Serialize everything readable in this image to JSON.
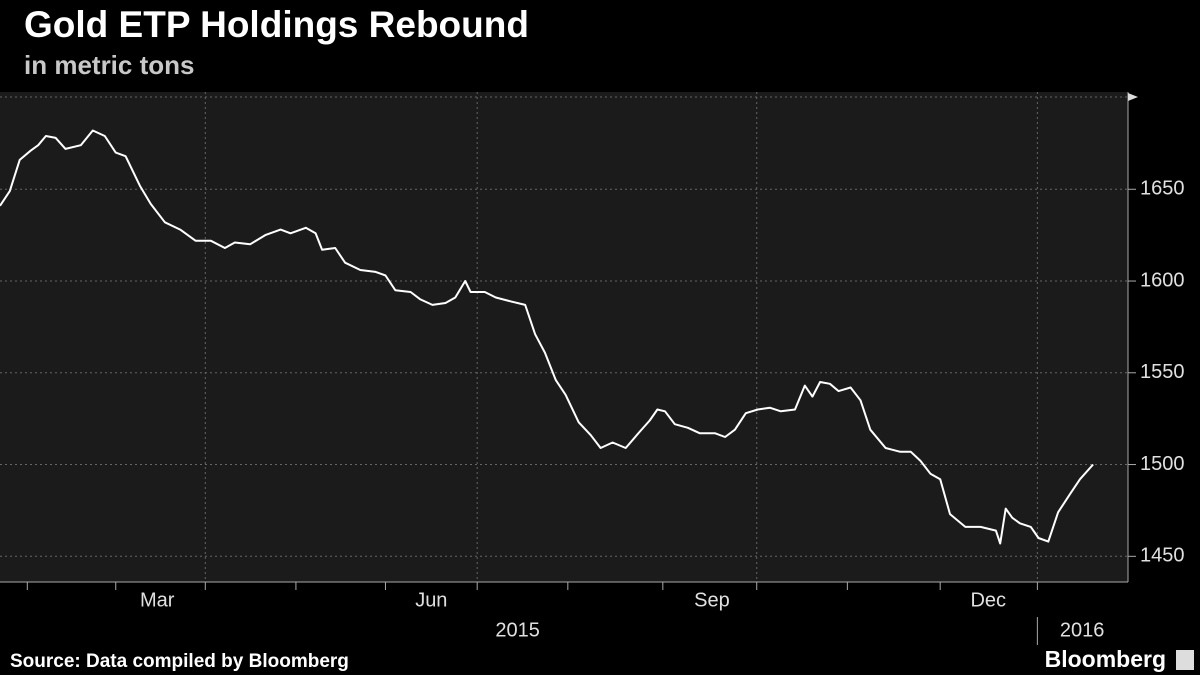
{
  "chart_data": {
    "type": "line",
    "title": "Gold ETP Holdings Rebound",
    "subtitle": "in metric tons",
    "source": "Source: Data compiled by Bloomberg",
    "brand": "Bloomberg",
    "color": "#ffffff",
    "grid": true,
    "x": [
      2015.062,
      2015.071,
      2015.08,
      2015.09,
      2015.097,
      2015.104,
      2015.113,
      2015.122,
      2015.136,
      2015.147,
      2015.158,
      2015.168,
      2015.177,
      2015.19,
      2015.2,
      2015.213,
      2015.227,
      2015.241,
      2015.255,
      2015.268,
      2015.277,
      2015.291,
      2015.305,
      2015.319,
      2015.328,
      2015.342,
      2015.351,
      2015.357,
      2015.369,
      2015.378,
      2015.392,
      2015.406,
      2015.415,
      2015.424,
      2015.438,
      2015.447,
      2015.458,
      2015.47,
      2015.479,
      2015.488,
      2015.493,
      2015.506,
      2015.516,
      2015.529,
      2015.543,
      2015.552,
      2015.561,
      2015.571,
      2015.58,
      2015.592,
      2015.603,
      2015.612,
      2015.623,
      2015.635,
      2015.648,
      2015.657,
      2015.664,
      2015.671,
      2015.68,
      2015.692,
      2015.703,
      2015.717,
      2015.726,
      2015.735,
      2015.745,
      2015.756,
      2015.767,
      2015.777,
      2015.79,
      2015.799,
      2015.806,
      2015.813,
      2015.822,
      2015.83,
      2015.841,
      2015.85,
      2015.859,
      2015.873,
      2015.886,
      2015.896,
      2015.905,
      2015.914,
      2015.923,
      2015.932,
      2015.946,
      2015.96,
      2015.974,
      2015.978,
      2015.983,
      2015.989,
      2015.996,
      2016.006,
      2016.013,
      2016.022,
      2016.031,
      2016.042,
      2016.051,
      2016.063
    ],
    "values": [
      1641,
      1649,
      1666,
      1671,
      1674,
      1679,
      1678,
      1672,
      1674,
      1682,
      1679,
      1670,
      1668,
      1652,
      1642,
      1632,
      1628,
      1622,
      1622,
      1618,
      1621,
      1620,
      1625,
      1628,
      1626,
      1629,
      1626,
      1617,
      1618,
      1610,
      1606,
      1605,
      1603,
      1595,
      1594,
      1590,
      1587,
      1588,
      1591,
      1600,
      1594,
      1594,
      1591,
      1589,
      1587,
      1571,
      1561,
      1546,
      1538,
      1523,
      1516,
      1509,
      1512,
      1509,
      1518,
      1524,
      1530,
      1529,
      1522,
      1520,
      1517,
      1517,
      1515,
      1519,
      1528,
      1530,
      1531,
      1529,
      1530,
      1543,
      1537,
      1545,
      1544,
      1540,
      1542,
      1535,
      1519,
      1509,
      1507,
      1507,
      1502,
      1495,
      1492,
      1473,
      1466,
      1466,
      1464,
      1457,
      1476,
      1471,
      1468,
      1466,
      1460,
      1458,
      1474,
      1484,
      1492,
      1500
    ],
    "xlim": [
      2015.062,
      2016.095
    ],
    "ylim": [
      1436,
      1703
    ],
    "yticks": [
      1450,
      1500,
      1550,
      1600,
      1650
    ],
    "xticks": [
      {
        "value": 2015.206,
        "label": "Mar"
      },
      {
        "value": 2015.457,
        "label": "Jun"
      },
      {
        "value": 2015.714,
        "label": "Sep"
      },
      {
        "value": 2015.967,
        "label": "Dec"
      }
    ],
    "xgrid": [
      2015.25,
      2015.499,
      2015.755,
      2016.012
    ],
    "xminorticks": [
      2015.087,
      2015.168,
      2015.25,
      2015.333,
      2015.415,
      2015.499,
      2015.582,
      2015.669,
      2015.755,
      2015.838,
      2015.923,
      2016.012
    ],
    "year_labels": [
      {
        "value": 2015.536,
        "label": "2015"
      },
      {
        "value": 2016.053,
        "label": "2016"
      }
    ]
  }
}
